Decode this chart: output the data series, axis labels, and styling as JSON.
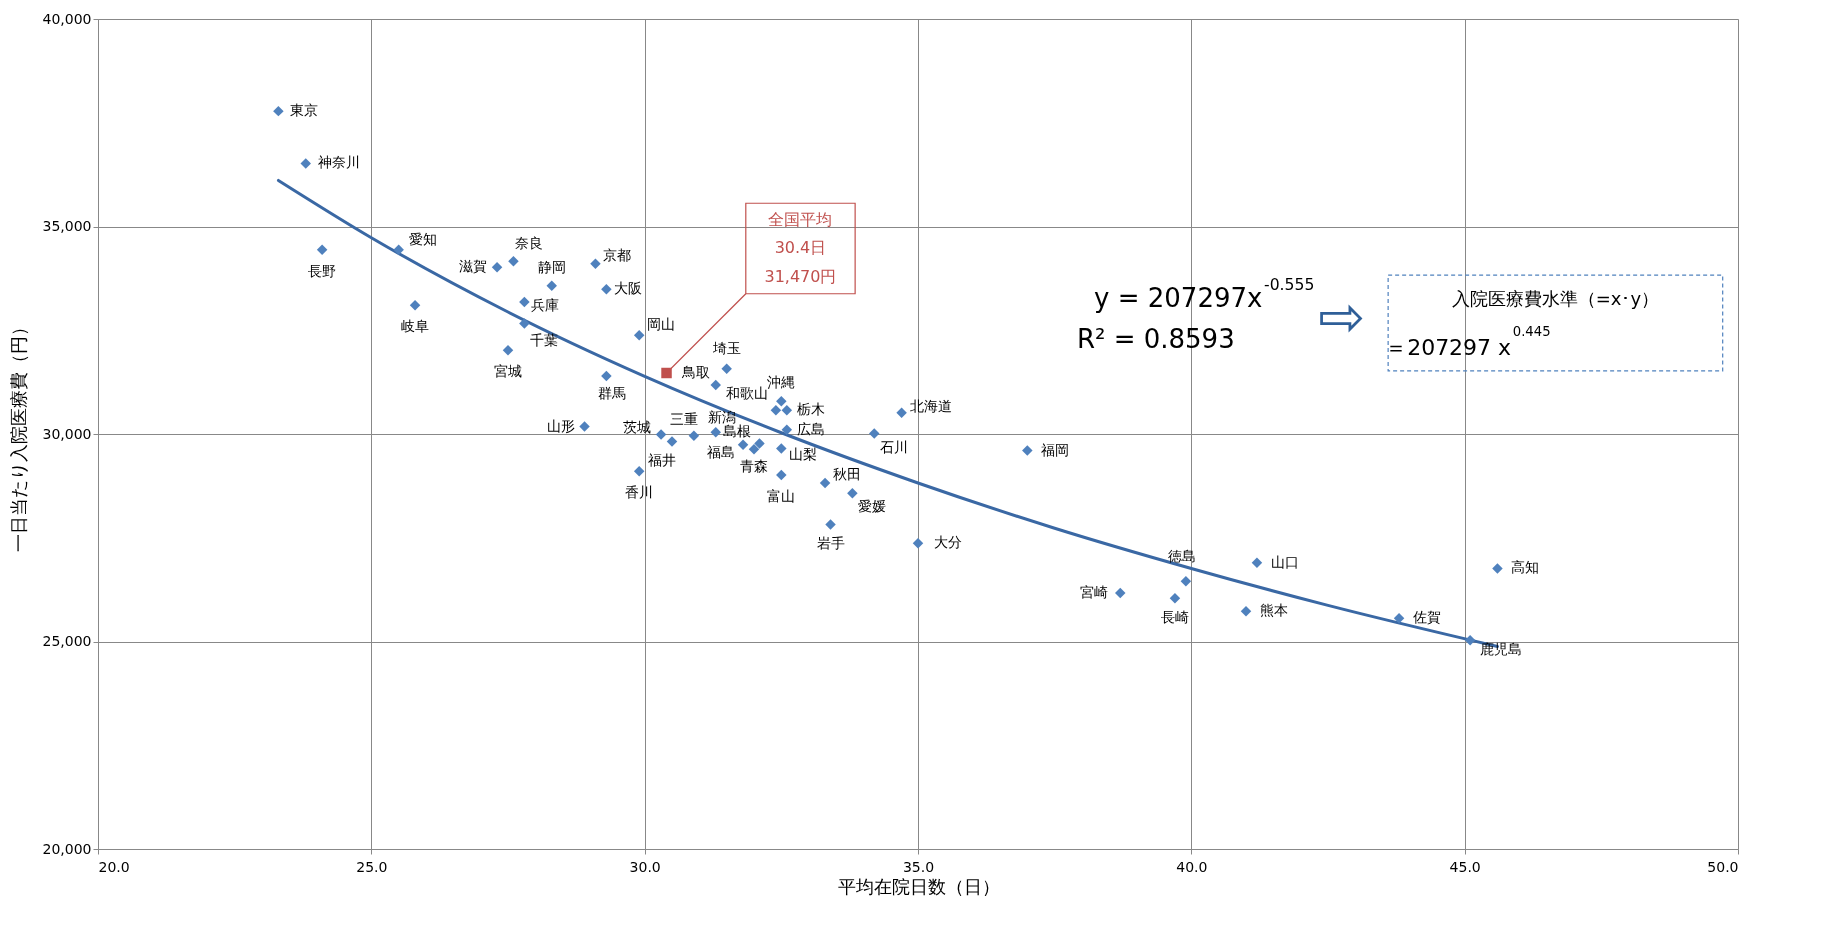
{
  "chart_data": {
    "type": "scatter",
    "xlabel": "平均在院日数（日）",
    "ylabel": "一日当たり入院医療費（円）",
    "xlim": [
      20,
      50
    ],
    "xticks": [
      {
        "value": 20,
        "label": "20.0"
      },
      {
        "value": 25,
        "label": "25.0"
      },
      {
        "value": 30,
        "label": "30.0"
      },
      {
        "value": 35,
        "label": "35.0"
      },
      {
        "value": 40,
        "label": "40.0"
      },
      {
        "value": 45,
        "label": "45.0"
      },
      {
        "value": 50,
        "label": "50.0"
      }
    ],
    "ylim": [
      20000,
      40000
    ],
    "yticks": [
      {
        "value": 20000,
        "label": "20,000"
      },
      {
        "value": 25000,
        "label": "25,000"
      },
      {
        "value": 30000,
        "label": "30,000"
      },
      {
        "value": 35000,
        "label": "35,000"
      },
      {
        "value": 40000,
        "label": "40,000"
      }
    ],
    "grid": true,
    "series": [
      {
        "type": "scatter",
        "marker": "diamond",
        "color": "#4f81bd",
        "x": [
          23.3,
          23.8,
          24.1,
          25.5,
          25.8,
          27.3,
          27.6,
          28.3,
          27.8,
          27.8,
          27.5,
          29.1,
          29.3,
          29.9,
          31.3,
          29.3,
          31.5,
          32.5,
          32.4,
          32.6,
          34.7,
          28.9,
          30.3,
          30.5,
          30.9,
          31.3,
          31.8,
          32.0,
          32.1,
          32.6,
          32.5,
          34.2,
          29.9,
          32.5,
          33.3,
          33.8,
          33.4,
          35.0,
          37.0,
          39.9,
          41.2,
          45.6,
          38.7,
          39.7,
          41.0,
          43.8,
          45.1
        ],
        "values": [
          37780,
          36520,
          34440,
          34440,
          33100,
          34020,
          34160,
          33570,
          33180,
          32660,
          32020,
          34100,
          33490,
          32380,
          31180,
          31400,
          31570,
          30790,
          30570,
          30570,
          30510,
          30180,
          29990,
          29820,
          29960,
          30040,
          29740,
          29630,
          29770,
          30100,
          29650,
          30010,
          29100,
          29010,
          28820,
          28570,
          27820,
          27370,
          29600,
          26450,
          26900,
          26760,
          26170,
          26040,
          25730,
          25560,
          25030
        ],
        "value_labels": [
          "東京",
          "神奈川",
          "長野",
          "愛知",
          "岐阜",
          "滋賀",
          "奈良",
          "静岡",
          "兵庫",
          "千葉",
          "宮城",
          "京都",
          "大阪",
          "岡山",
          "鳥取",
          "群馬",
          "埼玉",
          "沖縄",
          "和歌山",
          "栃木",
          "北海道",
          "山形",
          "茨城",
          "福井",
          "三重",
          "新潟",
          "福島",
          "青森",
          "島根",
          "広島",
          "山梨",
          "石川",
          "香川",
          "富山",
          "秋田",
          "愛媛",
          "岩手",
          "大分",
          "福岡",
          "徳島",
          "山口",
          "高知",
          "宮崎",
          "長崎",
          "熊本",
          "佐賀",
          "鹿児島"
        ]
      },
      {
        "type": "scatter",
        "marker": "square",
        "color": "#c0504d",
        "x": [
          30.4
        ],
        "values": [
          31470
        ]
      },
      {
        "type": "line",
        "color": "#3a68a4",
        "line_style": "solid",
        "x": [
          23.3,
          25,
          27.5,
          30,
          32.5,
          35,
          37.5,
          40,
          42.5,
          45.6
        ],
        "values": [
          36110,
          34730,
          32940,
          31390,
          30030,
          28820,
          27730,
          26760,
          25870,
          24880
        ]
      }
    ],
    "annotations": [
      {
        "text": "全国平均\n30.4日\n31,470円",
        "x": 30.4,
        "y": 31470
      },
      "y = 207297x$^{-0.555}$",
      "R² = 0.8593",
      "⇨",
      "入院医療費水準（=x･y）",
      "＝207297 x$^{0.445}$"
    ]
  }
}
